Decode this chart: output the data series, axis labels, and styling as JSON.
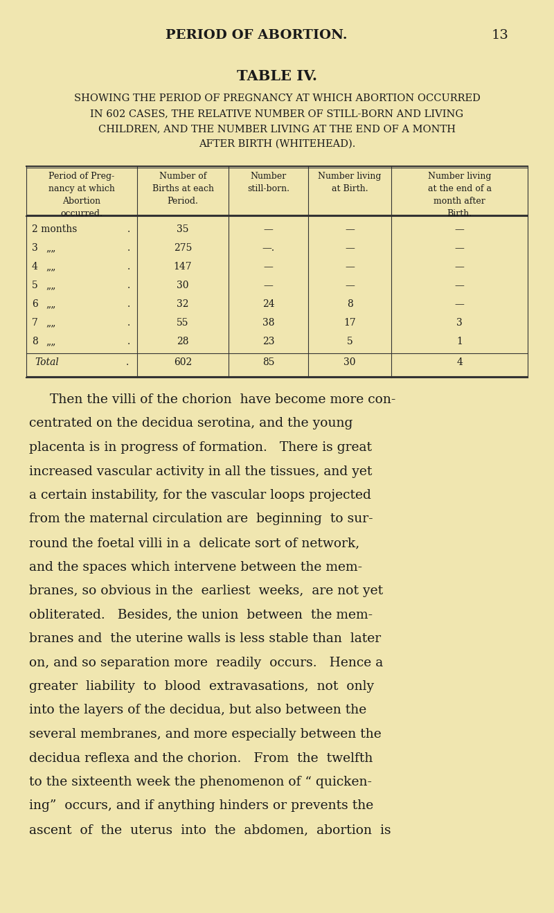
{
  "bg_color": "#f0e6b0",
  "page_number": "13",
  "header_text": "PERIOD OF ABORTION.",
  "table_title": "TABLE IV.",
  "subtitle_lines": [
    "SHOWING THE PERIOD OF PREGNANCY AT WHICH ABORTION OCCURRED",
    "IN 602 CASES, THE RELATIVE NUMBER OF STILL-BORN AND LIVING",
    "CHILDREN, AND THE NUMBER LIVING AT THE END OF A MONTH",
    "AFTER BIRTH (WHITEHEAD)."
  ],
  "col_headers": [
    "Period of Preg-\nnancy at which\nAbortion\noccurred.",
    "Number of\nBirths at each\nPeriod.",
    "Number\nstill-born.",
    "Number living\nat Birth.",
    "Number living\nat the end of a\nmonth after\nBirth."
  ],
  "row_labels": [
    "2 months",
    "3",
    "4",
    "5",
    "6",
    "7",
    "8"
  ],
  "row_dots": [
    ".",
    ".",
    ".",
    ".",
    ".",
    ".",
    "."
  ],
  "col2": [
    "35",
    "275",
    "147",
    "30",
    "32",
    "55",
    "28"
  ],
  "col3": [
    "—",
    "—.",
    "—",
    "—",
    "24",
    "38",
    "23"
  ],
  "col4": [
    "—",
    "—",
    "—",
    "—",
    "8",
    "17",
    "5"
  ],
  "col5": [
    "—",
    "—",
    "—",
    "—",
    "—",
    "3",
    "1"
  ],
  "total_row": [
    "Total",
    ".",
    "602",
    "85",
    "30",
    "4"
  ],
  "body_text": [
    "Then the villi of the chorion  have become more con-",
    "centrated on the decidua serotina, and the young",
    "placenta is in progress of formation.   There is great",
    "increased vascular activity in all the tissues, and yet",
    "a certain instability, for the vascular loops projected",
    "from the maternal circulation are  beginning  to sur-",
    "round the foetal villi in a  delicate sort of network,",
    "and the spaces which intervene between the mem-",
    "branes, so obvious in the  earliest  weeks,  are not yet",
    "obliterated.   Besides, the union  between  the mem-",
    "branes and  the uterine walls is less stable than  later",
    "on, and so separation more  readily  occurs.   Hence a",
    "greater  liability  to  blood  extravasations,  not  only",
    "into the layers of the decidua, but also between the",
    "several membranes, and more especially between the",
    "decidua reflexa and the chorion.   From  the  twelfth",
    "to the sixteenth week the phenomenon of “ quicken-",
    "ing”  occurs, and if anything hinders or prevents the",
    "ascent  of  the  uterus  into  the  abdomen,  abortion  is"
  ]
}
